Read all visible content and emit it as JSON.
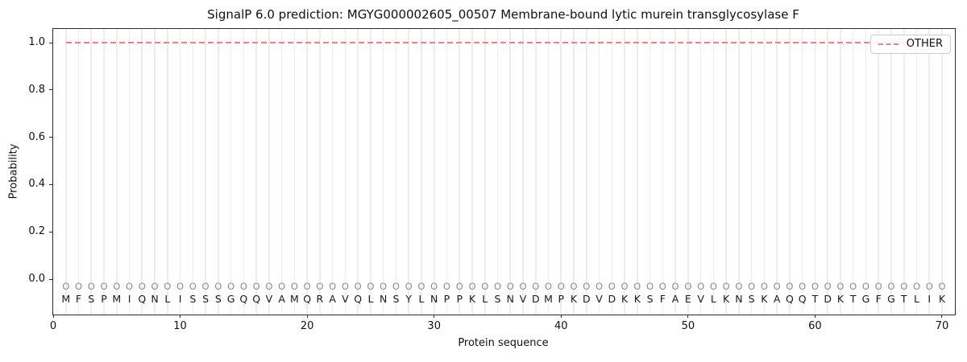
{
  "chart_data": {
    "type": "line",
    "title": "SignalP 6.0 prediction: MGYG000002605_00507 Membrane-bound lytic murein transglycosylase F",
    "xlabel": "Protein sequence",
    "ylabel": "Probability",
    "xlim": [
      0,
      71
    ],
    "ylim": [
      -0.15,
      1.06
    ],
    "xticks": [
      0,
      10,
      20,
      30,
      40,
      50,
      60,
      70
    ],
    "yticks": [
      0.0,
      0.2,
      0.4,
      0.6,
      0.8,
      1.0
    ],
    "grid": "light vertical gridline at each residue position 1-70",
    "legend": {
      "position": "upper-right",
      "entries": [
        {
          "label": "OTHER",
          "color": "#f08080",
          "linestyle": "dashed"
        }
      ]
    },
    "series": [
      {
        "name": "OTHER",
        "color": "#f08080",
        "linestyle": "dashed",
        "linewidth": 2,
        "x_start": 1,
        "x_end": 70,
        "y_constant": 1.0
      }
    ],
    "sequence": "MFSPMIQNLISSSGQQVAMQRAVQLNSYLNPPKLSNVDMPKDVDKKSFAEVLKNSKAQQTDKTGFGTLIK",
    "sequence_length": 70,
    "position_tag": "O",
    "tag_y": -0.04,
    "residue_y": -0.085
  },
  "colors": {
    "background": "#ffffff",
    "other_line": "#f08080",
    "grid": "#ededed",
    "spine": "#2b2b2b",
    "tag_text": "#8c8c8c",
    "residue_text": "#1a1a1a",
    "legend_border": "#cccccc"
  }
}
